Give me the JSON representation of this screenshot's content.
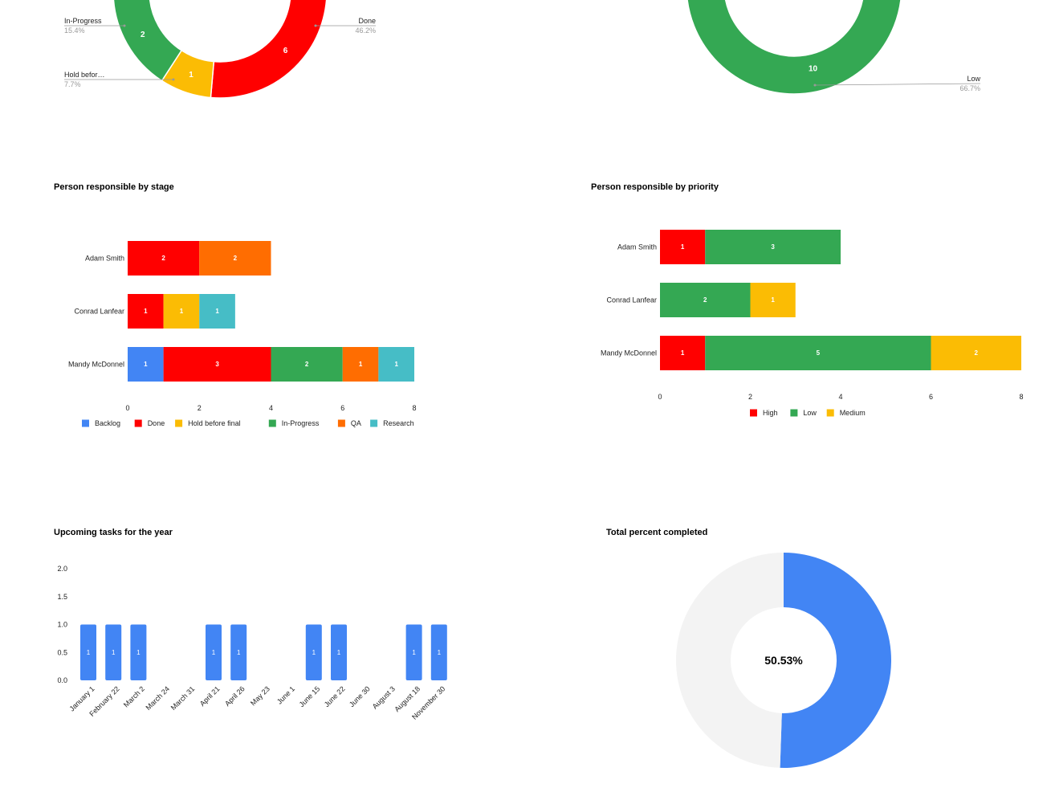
{
  "colors": {
    "backlog": "#4285F4",
    "done": "#FF0000",
    "hold": "#FBBC04",
    "inprogress": "#34A853",
    "qa": "#FF6D01",
    "research": "#46BDC6",
    "remaining": "#F3F3F3"
  },
  "chart_data": [
    {
      "type": "pie",
      "labels": [
        "Done",
        "Hold befor…",
        "In-Progress"
      ],
      "values": [
        6,
        1,
        2
      ],
      "percent_labels": [
        "46.2%",
        "7.7%",
        "15.4%"
      ],
      "value_labels": [
        "6",
        "1",
        "2"
      ]
    },
    {
      "type": "pie",
      "labels": [
        "Low"
      ],
      "values": [
        10
      ],
      "percent_labels": [
        "66.7%"
      ],
      "value_labels": [
        "10"
      ]
    },
    {
      "type": "bar",
      "orientation": "horizontal",
      "stacked": true,
      "title": "Person responsible by stage",
      "categories": [
        "Adam Smith",
        "Conrad Lanfear",
        "Mandy McDonnel"
      ],
      "series": [
        {
          "name": "Backlog",
          "values": [
            0,
            0,
            1
          ]
        },
        {
          "name": "Done",
          "values": [
            2,
            1,
            3
          ]
        },
        {
          "name": "Hold before final",
          "values": [
            0,
            1,
            0
          ]
        },
        {
          "name": "In-Progress",
          "values": [
            0,
            0,
            2
          ]
        },
        {
          "name": "QA",
          "values": [
            2,
            0,
            1
          ]
        },
        {
          "name": "Research",
          "values": [
            0,
            1,
            1
          ]
        }
      ],
      "xlim": [
        0,
        8
      ],
      "xticks": [
        "0",
        "2",
        "4",
        "6",
        "8"
      ],
      "legend_position": "bottom"
    },
    {
      "type": "bar",
      "orientation": "horizontal",
      "stacked": true,
      "title": "Person responsible by priority",
      "categories": [
        "Adam Smith",
        "Conrad Lanfear",
        "Mandy McDonnel"
      ],
      "series": [
        {
          "name": "High",
          "values": [
            1,
            0,
            1
          ]
        },
        {
          "name": "Low",
          "values": [
            3,
            2,
            5
          ]
        },
        {
          "name": "Medium",
          "values": [
            0,
            1,
            2
          ]
        }
      ],
      "xlim": [
        0,
        8
      ],
      "xticks": [
        "0",
        "2",
        "4",
        "6",
        "8"
      ],
      "legend_position": "bottom"
    },
    {
      "type": "bar",
      "title": "Upcoming tasks for the year",
      "categories": [
        "January 1",
        "February 22",
        "March 2",
        "March 24",
        "March 31",
        "April 21",
        "April 26",
        "May 23",
        "June 1",
        "June 15",
        "June 22",
        "June 30",
        "August 3",
        "August 18",
        "November 30"
      ],
      "series": [
        {
          "values": [
            1,
            1,
            1,
            0,
            0,
            1,
            1,
            0,
            0,
            1,
            1,
            0,
            0,
            1,
            1
          ]
        }
      ],
      "ylim": [
        0,
        2
      ],
      "yticks": [
        "2.0",
        "1.5",
        "1.0",
        "0.5",
        "0.0"
      ]
    },
    {
      "type": "pie",
      "title": "Total percent completed",
      "values": [
        50.53,
        49.47
      ],
      "center_label": "50.53%"
    }
  ]
}
